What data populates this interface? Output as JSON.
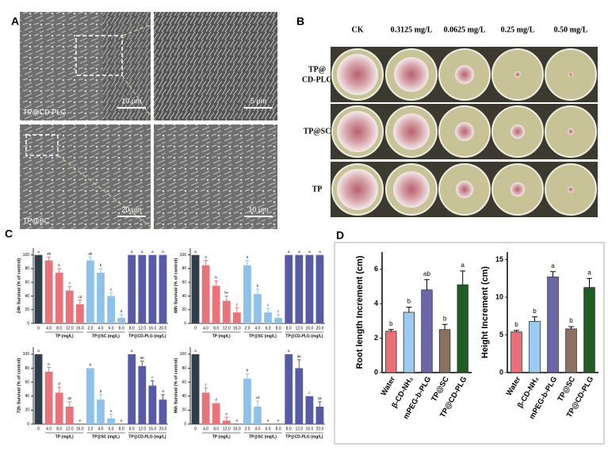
{
  "panel_labels": [
    "A",
    "B",
    "C",
    "D"
  ],
  "panel_a": {
    "images": [
      {
        "label": "TP@CD-PLG",
        "scale": "10 μm"
      },
      {
        "scale": "5 μm"
      },
      {
        "label": "TP@SC",
        "scale": "20 μm"
      },
      {
        "scale": "10 μm"
      }
    ]
  },
  "panel_b": {
    "columns": [
      "CK",
      "0.3125 mg/L",
      "0.0625 mg/L",
      "0.25 mg/L",
      "0.50 mg/L"
    ],
    "rows": [
      [
        "TP@",
        "CD-PLG"
      ],
      [
        "TP@SC"
      ],
      [
        "TP"
      ]
    ]
  },
  "chart_data": [
    {
      "type": "bar",
      "y_label": "24h Survival (% of control)",
      "categories": [
        "0",
        "4.0",
        "8.0",
        "12.0",
        "16.0",
        "2.0",
        "4.0",
        "6.0",
        "8.0",
        "8.0",
        "12.0",
        "16.0",
        "20.0"
      ],
      "group_labels": [
        "TP (mg/L)",
        "TP@SC (mg/L)",
        "TP@CD-PLG (mg/L)"
      ],
      "colors": [
        "#2f3d4d",
        "#e8737a",
        "#e8737a",
        "#e8737a",
        "#e8737a",
        "#8fc2ea",
        "#8fc2ea",
        "#8fc2ea",
        "#8fc2ea",
        "#575aa5",
        "#575aa5",
        "#575aa5",
        "#575aa5"
      ],
      "values": [
        100,
        92,
        74,
        48,
        28,
        92,
        74,
        40,
        8,
        100,
        100,
        100,
        100
      ],
      "errors": [
        0,
        5,
        6,
        6,
        6,
        5,
        6,
        5,
        5,
        0,
        0,
        0,
        0
      ],
      "annotations": [
        "a",
        "ab",
        "b",
        "c",
        "cd",
        "ab",
        "b",
        "c",
        "d",
        "a",
        "a",
        "a",
        "a"
      ],
      "ylim": [
        0,
        110
      ],
      "yticks": [
        0,
        20,
        40,
        60,
        80,
        100
      ]
    },
    {
      "type": "bar",
      "y_label": "48h Survival (% of control)",
      "categories": [
        "0",
        "4.0",
        "8.0",
        "12.0",
        "16.0",
        "2.0",
        "4.0",
        "6.0",
        "8.0",
        "8.0",
        "12.0",
        "16.0",
        "20.0"
      ],
      "group_labels": [
        "TP (mg/L)",
        "TP@SC (mg/L)",
        "TP@CD-PLG (mg/L)"
      ],
      "colors": [
        "#2f3d4d",
        "#e8737a",
        "#e8737a",
        "#e8737a",
        "#e8737a",
        "#8fc2ea",
        "#8fc2ea",
        "#8fc2ea",
        "#8fc2ea",
        "#575aa5",
        "#575aa5",
        "#575aa5",
        "#575aa5"
      ],
      "values": [
        100,
        85,
        55,
        33,
        16,
        85,
        43,
        16,
        8,
        100,
        100,
        100,
        100
      ],
      "errors": [
        0,
        7,
        7,
        7,
        7,
        7,
        7,
        6,
        5,
        0,
        0,
        0,
        0
      ],
      "annotations": [
        "a",
        "a",
        "b",
        "bc",
        "c",
        "a",
        "b",
        "c",
        "c",
        "a",
        "a",
        "a",
        "a"
      ],
      "ylim": [
        0,
        110
      ],
      "yticks": [
        0,
        20,
        40,
        60,
        80,
        100
      ]
    },
    {
      "type": "bar",
      "y_label": "72h Survival (% of control)",
      "categories": [
        "0",
        "4.0",
        "8.0",
        "12.0",
        "16.0",
        "2.0",
        "4.0",
        "6.0",
        "8.0",
        "8.0",
        "12.0",
        "16.0",
        "20.0"
      ],
      "group_labels": [
        "TP (mg/L)",
        "TP@SC (mg/L)",
        "TP@CD-PLG (mg/L)"
      ],
      "colors": [
        "#2f3d4d",
        "#e8737a",
        "#e8737a",
        "#e8737a",
        "#e8737a",
        "#8fc2ea",
        "#8fc2ea",
        "#8fc2ea",
        "#8fc2ea",
        "#575aa5",
        "#575aa5",
        "#575aa5",
        "#575aa5"
      ],
      "values": [
        100,
        75,
        45,
        25,
        0,
        80,
        35,
        8,
        0,
        100,
        83,
        55,
        35
      ],
      "errors": [
        0,
        6,
        8,
        7,
        0,
        0,
        7,
        6,
        0,
        0,
        7,
        7,
        7
      ],
      "annotations": [
        "a",
        "b",
        "d",
        "de",
        "e",
        "b",
        "d",
        "e",
        "e",
        "a",
        "ab",
        "c",
        "d"
      ],
      "ylim": [
        0,
        110
      ],
      "yticks": [
        0,
        20,
        40,
        60,
        80,
        100
      ]
    },
    {
      "type": "bar",
      "y_label": "96h Survival (% of control)",
      "categories": [
        "0",
        "4.0",
        "8.0",
        "12.0",
        "16.0",
        "2.0",
        "4.0",
        "6.0",
        "8.0",
        "8.0",
        "12.0",
        "16.0",
        "20.0"
      ],
      "group_labels": [
        "TP (mg/L)",
        "TP@SC (mg/L)",
        "TP@CD-PLG (mg/L)"
      ],
      "colors": [
        "#2f3d4d",
        "#e8737a",
        "#e8737a",
        "#e8737a",
        "#e8737a",
        "#8fc2ea",
        "#8fc2ea",
        "#8fc2ea",
        "#8fc2ea",
        "#575aa5",
        "#575aa5",
        "#575aa5",
        "#575aa5"
      ],
      "values": [
        100,
        45,
        30,
        5,
        0,
        65,
        25,
        0,
        0,
        100,
        80,
        40,
        25
      ],
      "errors": [
        0,
        7,
        0,
        5,
        0,
        7,
        8,
        0,
        0,
        0,
        12,
        0,
        7
      ],
      "annotations": [
        "a",
        "c",
        "d",
        "e",
        "e",
        "b",
        "cd",
        "e",
        "e",
        "a",
        "ab",
        "c",
        "de"
      ],
      "ylim": [
        0,
        110
      ],
      "yticks": [
        0,
        20,
        40,
        60,
        80,
        100
      ]
    },
    {
      "type": "bar",
      "y_label": "Root length Increment (cm)",
      "categories": [
        "Water",
        "β-CD-NH₂",
        "mPEG-b-PLG",
        "TP@SC",
        "TP@CD-PLG"
      ],
      "colors": [
        "#ea6f76",
        "#9ccaf0",
        "#6a66a8",
        "#8b7161",
        "#1f5e22"
      ],
      "values": [
        2.4,
        3.5,
        4.8,
        2.5,
        5.1
      ],
      "errors": [
        0.1,
        0.3,
        0.6,
        0.3,
        0.8
      ],
      "annotations": [
        "b",
        "b",
        "ab",
        "b",
        "a"
      ],
      "ylim": [
        0,
        7
      ],
      "yticks": [
        0,
        2,
        4,
        6
      ]
    },
    {
      "type": "bar",
      "y_label": "Height Increment (cm)",
      "categories": [
        "Water",
        "β-CD-NH₂",
        "mPEG-b-PLG",
        "TP@SC",
        "TP@CD-PLG"
      ],
      "colors": [
        "#ea6f76",
        "#9ccaf0",
        "#6a66a8",
        "#8b7161",
        "#1f5e22"
      ],
      "values": [
        5.4,
        6.8,
        12.7,
        5.8,
        11.3
      ],
      "errors": [
        0.2,
        0.6,
        0.7,
        0.3,
        1.2
      ],
      "annotations": [
        "b",
        "b",
        "a",
        "b",
        "a"
      ],
      "ylim": [
        0,
        16
      ],
      "yticks": [
        0,
        5,
        10,
        15
      ]
    }
  ]
}
